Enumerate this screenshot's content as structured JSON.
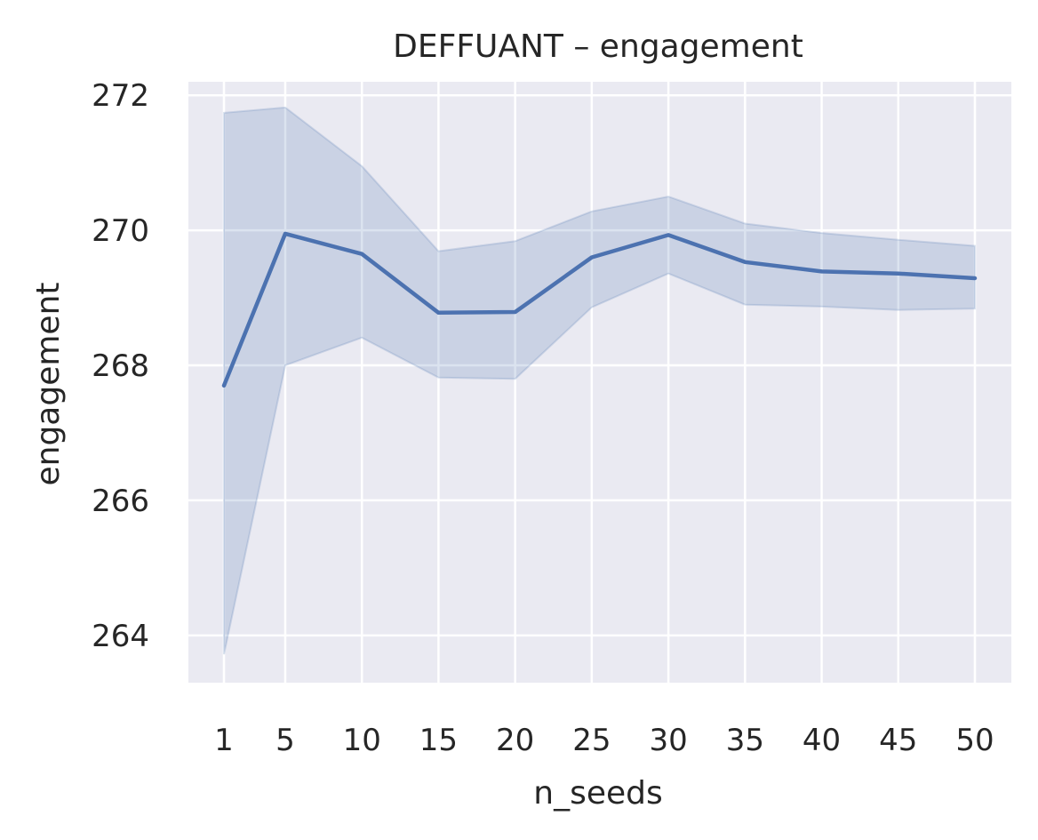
{
  "chart_data": {
    "type": "line",
    "title": "DEFFUANT – engagement",
    "xlabel": "n_seeds",
    "ylabel": "engagement",
    "x": [
      1,
      5,
      10,
      15,
      20,
      25,
      30,
      35,
      40,
      45,
      50
    ],
    "x_tick_labels": [
      "1",
      "5",
      "10",
      "15",
      "20",
      "25",
      "30",
      "35",
      "40",
      "45",
      "50"
    ],
    "y_ticks": [
      264,
      266,
      268,
      270,
      272
    ],
    "y_tick_labels": [
      "264",
      "266",
      "268",
      "270",
      "272"
    ],
    "ylim": [
      263.3,
      272.2
    ],
    "grid": true,
    "series": [
      {
        "values": [
          267.7,
          269.95,
          269.65,
          268.78,
          268.79,
          269.6,
          269.93,
          269.53,
          269.39,
          269.36,
          269.29
        ],
        "ci_upper": [
          271.74,
          271.82,
          270.95,
          269.69,
          269.84,
          270.28,
          270.5,
          270.1,
          269.96,
          269.86,
          269.77
        ],
        "ci_lower": [
          263.72,
          268.0,
          268.41,
          267.82,
          267.8,
          268.86,
          269.36,
          268.9,
          268.87,
          268.82,
          268.84
        ]
      }
    ],
    "colors": {
      "line": "#4c72b0",
      "band": "#4c72b0",
      "plot_background": "#eaeaf2",
      "grid": "#ffffff",
      "text": "#262626"
    }
  }
}
